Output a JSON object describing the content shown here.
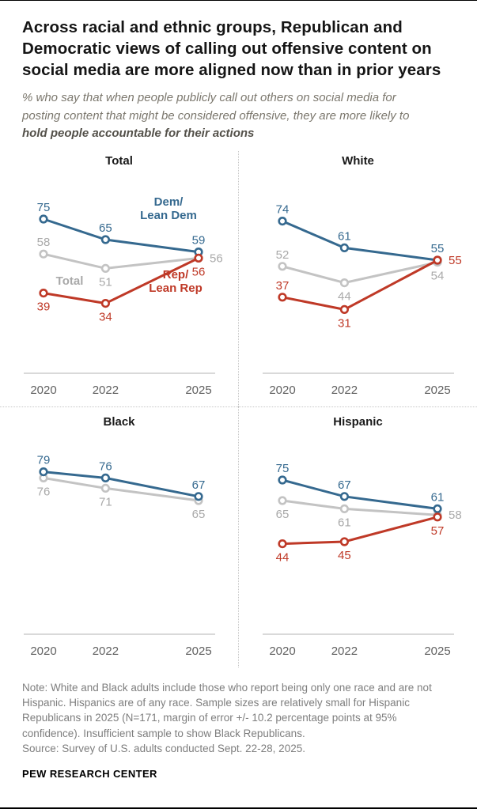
{
  "header": {
    "title": "Across racial and ethnic groups, Republican and Democratic views of calling out offensive content on social media are more aligned now than in prior years",
    "subtitle_prefix": "% who say that when people publicly call out others on social media for posting content that might be considered offensive, they are more likely to ",
    "subtitle_emphasis": "hold people accountable for their actions"
  },
  "colors": {
    "dem": "#35698f",
    "rep": "#bf3927",
    "total_line": "#c3c3c3",
    "total_label": "#a9a9a9",
    "axis": "#b3b3b3",
    "tick": "#616161"
  },
  "chart_data": [
    {
      "type": "line",
      "title": "Total",
      "x": [
        2020,
        2022,
        2025
      ],
      "ylim": [
        0,
        100
      ],
      "grid": false,
      "series": [
        {
          "name": "Dem/Lean Dem",
          "color_key": "dem",
          "z": 1,
          "values": [
            75,
            65,
            59
          ],
          "label_side": [
            "above",
            "above",
            "above"
          ]
        },
        {
          "name": "Total",
          "color_key": "total_line",
          "label_color_key": "total_label",
          "z": 0,
          "values": [
            58,
            51,
            56
          ],
          "label_side": [
            "above",
            "below",
            "right"
          ]
        },
        {
          "name": "Rep/Lean Rep",
          "color_key": "rep",
          "z": 2,
          "values": [
            39,
            34,
            56
          ],
          "label_side": [
            "below",
            "below",
            "below"
          ]
        }
      ],
      "annotations": [
        {
          "lines": [
            "Dem/",
            "Lean Dem"
          ],
          "color_key": "dem",
          "x": 213,
          "y": 46
        },
        {
          "lines": [
            "Total"
          ],
          "color_key": "total_label",
          "x": 88,
          "y": 146
        },
        {
          "lines": [
            "Rep/",
            "Lean Rep"
          ],
          "color_key": "rep",
          "x": 222,
          "y": 138
        }
      ]
    },
    {
      "type": "line",
      "title": "White",
      "x": [
        2020,
        2022,
        2025
      ],
      "ylim": [
        0,
        100
      ],
      "grid": false,
      "series": [
        {
          "name": "Dem/Lean Dem",
          "color_key": "dem",
          "z": 1,
          "values": [
            74,
            61,
            55
          ],
          "label_side": [
            "above",
            "above",
            "above"
          ]
        },
        {
          "name": "Total",
          "color_key": "total_line",
          "label_color_key": "total_label",
          "z": 0,
          "values": [
            52,
            44,
            54
          ],
          "label_side": [
            "above",
            "below",
            "below"
          ]
        },
        {
          "name": "Rep/Lean Rep",
          "color_key": "rep",
          "z": 2,
          "values": [
            37,
            31,
            55
          ],
          "label_side": [
            "above",
            "below",
            "right"
          ]
        }
      ],
      "annotations": []
    },
    {
      "type": "line",
      "title": "Black",
      "x": [
        2020,
        2022,
        2025
      ],
      "ylim": [
        0,
        100
      ],
      "grid": false,
      "series": [
        {
          "name": "Dem/Lean Dem",
          "color_key": "dem",
          "z": 1,
          "values": [
            79,
            76,
            67
          ],
          "label_side": [
            "above",
            "above",
            "above"
          ]
        },
        {
          "name": "Total",
          "color_key": "total_line",
          "label_color_key": "total_label",
          "z": 0,
          "values": [
            76,
            71,
            65
          ],
          "label_side": [
            "below",
            "below",
            "below"
          ]
        }
      ],
      "annotations": []
    },
    {
      "type": "line",
      "title": "Hispanic",
      "x": [
        2020,
        2022,
        2025
      ],
      "ylim": [
        0,
        100
      ],
      "grid": false,
      "series": [
        {
          "name": "Dem/Lean Dem",
          "color_key": "dem",
          "z": 1,
          "values": [
            75,
            67,
            61
          ],
          "label_side": [
            "above",
            "above",
            "above"
          ]
        },
        {
          "name": "Total",
          "color_key": "total_line",
          "label_color_key": "total_label",
          "z": 0,
          "values": [
            65,
            61,
            58
          ],
          "label_side": [
            "below",
            "below",
            "right"
          ]
        },
        {
          "name": "Rep/Lean Rep",
          "color_key": "rep",
          "z": 2,
          "values": [
            44,
            45,
            57
          ],
          "label_side": [
            "below",
            "below",
            "below"
          ]
        }
      ],
      "annotations": []
    }
  ],
  "footer": {
    "note": "Note: White and Black adults include those who report being only one race and are not Hispanic. Hispanics are of any race. Sample sizes are relatively small for Hispanic Republicans in 2025 (N=171, margin of error +/- 10.2 percentage points at 95% confidence). Insufficient sample to show Black Republicans.",
    "source": "Source: Survey of U.S. adults conducted Sept. 22-28, 2025.",
    "brand": "PEW RESEARCH CENTER"
  }
}
